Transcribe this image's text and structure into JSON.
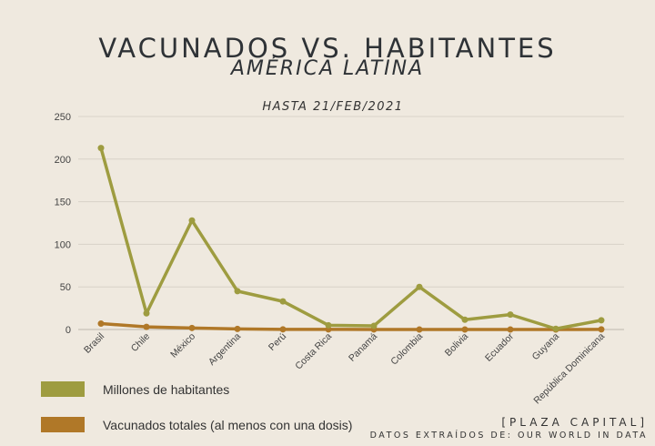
{
  "chart_data": {
    "type": "line",
    "title": "VACUNADOS VS. HABITANTES",
    "subtitle": "AMÉRICA LATINA",
    "date_note": "HASTA 21/FEB/2021",
    "categories": [
      "Brasil",
      "Chile",
      "México",
      "Argentina",
      "Perú",
      "Costa Rica",
      "Panamá",
      "Colombia",
      "Bolivia",
      "Ecuador",
      "Guyana",
      "República Dominicana"
    ],
    "series": [
      {
        "name": "Millones de habitantes",
        "color": "#9e9c40",
        "values": [
          213,
          19,
          128,
          45,
          33,
          5,
          4.3,
          50,
          11.5,
          17.5,
          0.8,
          10.8
        ]
      },
      {
        "name": "Vacunados totales (al menos con una dosis)",
        "color": "#b07828",
        "values": [
          6.9,
          3.1,
          1.8,
          0.7,
          0.2,
          0.1,
          0.05,
          0.02,
          0.01,
          0.01,
          0.0,
          0.1
        ]
      }
    ],
    "yticks": [
      0,
      50,
      100,
      150,
      200,
      250
    ],
    "ylim": [
      0,
      250
    ],
    "grid": true,
    "legend": "bottom-left"
  },
  "footer": {
    "brand": "[PLAZA CAPITAL]",
    "source": "DATOS EXTRAÍDOS DE: OUR WORLD IN DATA"
  }
}
